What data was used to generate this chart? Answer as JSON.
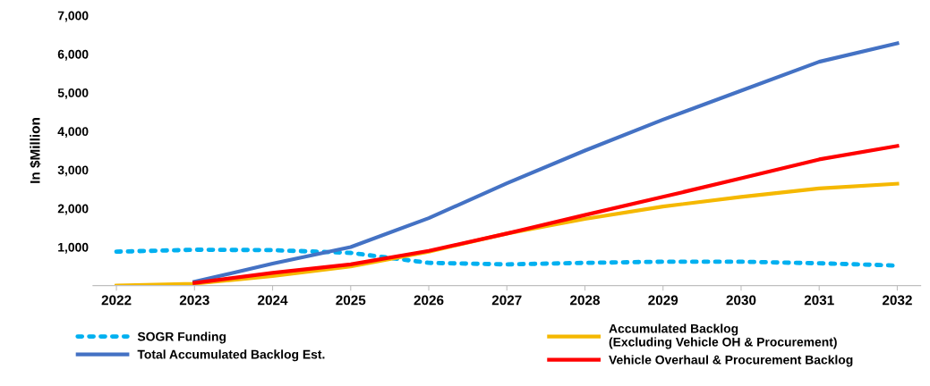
{
  "chart_data": {
    "type": "line",
    "ylabel": "In $Million",
    "categories": [
      "2022",
      "2023",
      "2024",
      "2025",
      "2026",
      "2027",
      "2028",
      "2029",
      "2030",
      "2031",
      "2032"
    ],
    "series": [
      {
        "name": "SOGR Funding",
        "color": "#00b0f0",
        "line_style": "dotted",
        "values": [
          880,
          930,
          920,
          850,
          590,
          550,
          590,
          620,
          620,
          580,
          520
        ]
      },
      {
        "name": "Accumulated Backlog\n(Excluding Vehicle OH & Procurement)",
        "color": "#f5b800",
        "line_style": "solid",
        "values": [
          0,
          50,
          250,
          500,
          880,
          1350,
          1730,
          2050,
          2300,
          2520,
          2640
        ]
      },
      {
        "name": "Total Accumulated Backlog Est.",
        "color": "#4472c4",
        "line_style": "solid",
        "values": [
          null,
          100,
          570,
          1000,
          1750,
          2650,
          3500,
          4300,
          5050,
          5800,
          6280
        ]
      },
      {
        "name": "Vehicle Overhaul & Procurement Backlog",
        "color": "#ff0000",
        "line_style": "solid",
        "values": [
          null,
          70,
          330,
          550,
          900,
          1350,
          1830,
          2300,
          2780,
          3270,
          3620
        ]
      }
    ],
    "ylim": [
      0,
      7000
    ],
    "yticks": [
      {
        "value": 1000,
        "label": "1,000"
      },
      {
        "value": 2000,
        "label": "2,000"
      },
      {
        "value": 3000,
        "label": "3,000"
      },
      {
        "value": 4000,
        "label": "4,000"
      },
      {
        "value": 5000,
        "label": "5,000"
      },
      {
        "value": 6000,
        "label": "6,000"
      },
      {
        "value": 7000,
        "label": "7,000"
      }
    ],
    "grid": false,
    "legend": "bottom",
    "marker": "none"
  }
}
